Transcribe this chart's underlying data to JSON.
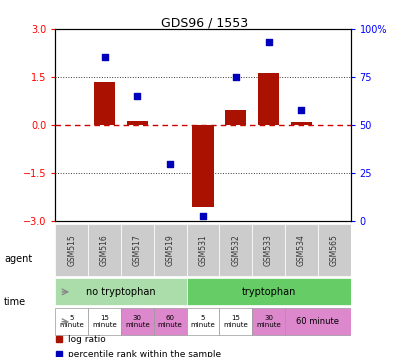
{
  "title": "GDS96 / 1553",
  "samples": [
    "GSM515",
    "GSM516",
    "GSM517",
    "GSM519",
    "GSM531",
    "GSM532",
    "GSM533",
    "GSM534",
    "GSM565"
  ],
  "log_ratio": [
    0.0,
    1.35,
    0.12,
    0.0,
    -2.55,
    0.45,
    1.62,
    0.08,
    0.0
  ],
  "percentile": [
    null,
    85,
    65,
    30,
    3,
    75,
    93,
    58,
    null
  ],
  "ylim_left": [
    -3,
    3
  ],
  "ylim_right": [
    0,
    100
  ],
  "yticks_left": [
    -3,
    -1.5,
    0,
    1.5,
    3
  ],
  "yticks_right": [
    0,
    25,
    50,
    75,
    100
  ],
  "bar_color": "#aa1100",
  "dot_color": "#0000bb",
  "agent_no_tryp_color": "#aaddaa",
  "agent_tryp_color": "#66cc66",
  "agent_no_tryp_label": "no tryptophan",
  "agent_tryp_label": "tryptophan",
  "gsm_bg_color": "#cccccc",
  "zero_line_color": "#cc0000",
  "dotline_color": "#333333",
  "time_white": "#ffffff",
  "time_pink": "#dd88cc",
  "legend_red": "log ratio",
  "legend_blue": "percentile rank within the sample"
}
